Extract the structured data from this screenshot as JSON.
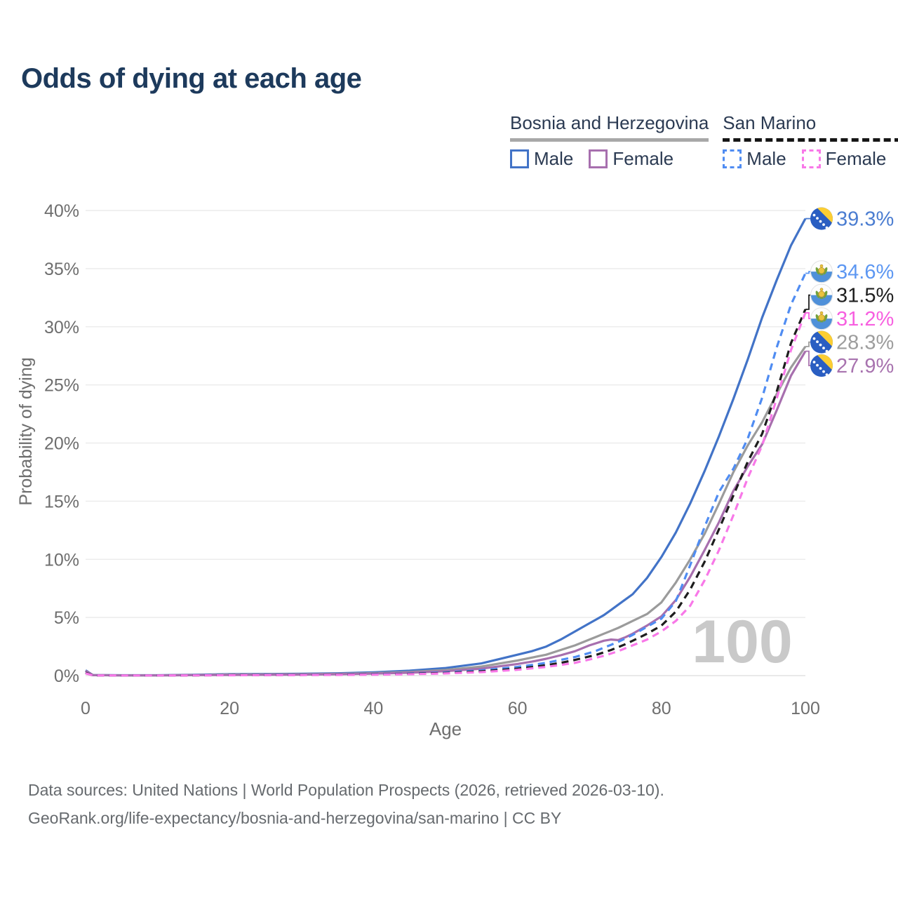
{
  "title": "Odds of dying at each age",
  "legend": {
    "groups": [
      {
        "country": "Bosnia and Herzegovina",
        "line_style": "solid",
        "line_color": "#a8a8a8",
        "items": [
          {
            "label": "Male",
            "color": "#4273c7",
            "style": "solid"
          },
          {
            "label": "Female",
            "color": "#a76fae",
            "style": "solid"
          }
        ]
      },
      {
        "country": "San Marino",
        "line_style": "dashed",
        "line_color": "#161616",
        "items": [
          {
            "label": "Male",
            "color": "#4f8cf2",
            "style": "dashed"
          },
          {
            "label": "Female",
            "color": "#f878e8",
            "style": "dashed"
          }
        ]
      }
    ]
  },
  "chart_data": {
    "type": "line",
    "title": "Odds of dying at each age",
    "xlabel": "Age",
    "ylabel": "Probability of dying",
    "xlim": [
      0,
      100
    ],
    "ylim": [
      0,
      40
    ],
    "grid": "horizontal",
    "legend_position": "top-right",
    "watermark": "100",
    "x_ticks": [
      {
        "value": 0,
        "label": "0"
      },
      {
        "value": 20,
        "label": "20"
      },
      {
        "value": 40,
        "label": "40"
      },
      {
        "value": 60,
        "label": "60"
      },
      {
        "value": 80,
        "label": "80"
      },
      {
        "value": 100,
        "label": "100"
      }
    ],
    "y_ticks": [
      {
        "value": 0,
        "label": "0%"
      },
      {
        "value": 5,
        "label": "5%"
      },
      {
        "value": 10,
        "label": "10%"
      },
      {
        "value": 15,
        "label": "15%"
      },
      {
        "value": 20,
        "label": "20%"
      },
      {
        "value": 25,
        "label": "25%"
      },
      {
        "value": 30,
        "label": "30%"
      },
      {
        "value": 35,
        "label": "35%"
      },
      {
        "value": 40,
        "label": "40%"
      }
    ],
    "ages": [
      0,
      1,
      5,
      10,
      15,
      20,
      25,
      30,
      35,
      40,
      45,
      50,
      55,
      60,
      62,
      64,
      66,
      68,
      70,
      71,
      72,
      73,
      74,
      75,
      76,
      78,
      80,
      82,
      84,
      86,
      88,
      90,
      92,
      94,
      96,
      98,
      100
    ],
    "unit": "%",
    "series": [
      {
        "id": "bih-male",
        "name": "Bosnia and Herzegovina — Male",
        "country": "Bosnia and Herzegovina",
        "sex": "Male",
        "color": "#4273c7",
        "label_color": "#4b7dd1",
        "dashed": false,
        "end_value": 39.3,
        "end_label": "39.3%",
        "flag": "bosnia-and-herzegovina-flag-icon",
        "values": [
          0.45,
          0.05,
          0.03,
          0.03,
          0.07,
          0.12,
          0.14,
          0.16,
          0.2,
          0.28,
          0.42,
          0.65,
          1.05,
          1.8,
          2.1,
          2.5,
          3.1,
          3.8,
          4.5,
          4.85,
          5.2,
          5.65,
          6.1,
          6.55,
          7.0,
          8.4,
          10.2,
          12.3,
          14.8,
          17.6,
          20.6,
          23.8,
          27.2,
          30.8,
          34.0,
          37.0,
          39.3
        ]
      },
      {
        "id": "bih-total",
        "name": "Bosnia and Herzegovina — Both sexes",
        "country": "Bosnia and Herzegovina",
        "sex": "Both",
        "color": "#9b9b9b",
        "label_color": "#9d9d9d",
        "dashed": false,
        "end_value": 28.3,
        "end_label": "28.3%",
        "flag": "bosnia-and-herzegovina-flag-icon",
        "values": [
          0.4,
          0.04,
          0.02,
          0.02,
          0.05,
          0.09,
          0.1,
          0.12,
          0.15,
          0.21,
          0.31,
          0.48,
          0.78,
          1.3,
          1.55,
          1.8,
          2.2,
          2.6,
          3.1,
          3.35,
          3.6,
          3.85,
          4.1,
          4.4,
          4.7,
          5.3,
          6.3,
          8.0,
          10.0,
          12.2,
          14.8,
          17.5,
          19.8,
          21.8,
          24.2,
          26.5,
          28.3
        ]
      },
      {
        "id": "bih-female",
        "name": "Bosnia and Herzegovina — Female",
        "country": "Bosnia and Herzegovina",
        "sex": "Female",
        "color": "#a76fae",
        "label_color": "#a873af",
        "dashed": false,
        "end_value": 27.9,
        "end_label": "27.9%",
        "flag": "bosnia-and-herzegovina-flag-icon",
        "values": [
          0.4,
          0.04,
          0.02,
          0.02,
          0.04,
          0.06,
          0.07,
          0.09,
          0.12,
          0.17,
          0.25,
          0.38,
          0.6,
          1.0,
          1.2,
          1.45,
          1.75,
          2.1,
          2.6,
          2.8,
          3.0,
          3.1,
          3.05,
          3.3,
          3.6,
          4.3,
          5.1,
          6.5,
          8.5,
          10.8,
          13.2,
          15.9,
          18.0,
          19.9,
          22.8,
          25.8,
          27.9
        ]
      },
      {
        "id": "sm-male",
        "name": "San Marino — Male",
        "country": "San Marino",
        "sex": "Male",
        "color": "#4f8cf2",
        "label_color": "#5d97f2",
        "dashed": true,
        "end_value": 34.6,
        "end_label": "34.6%",
        "flag": "san-marino-flag-icon",
        "values": [
          0.25,
          0.02,
          0.01,
          0.01,
          0.03,
          0.05,
          0.06,
          0.07,
          0.09,
          0.12,
          0.18,
          0.28,
          0.45,
          0.75,
          0.92,
          1.1,
          1.35,
          1.6,
          1.95,
          2.15,
          2.4,
          2.65,
          2.9,
          3.2,
          3.5,
          4.2,
          4.9,
          6.4,
          9.5,
          12.8,
          15.8,
          17.8,
          20.4,
          23.9,
          28.2,
          31.9,
          34.6
        ]
      },
      {
        "id": "sm-total",
        "name": "San Marino — Both sexes",
        "country": "San Marino",
        "sex": "Both",
        "color": "#1d1d1d",
        "label_color": "#1f1f1f",
        "dashed": true,
        "end_value": 31.5,
        "end_label": "31.5%",
        "flag": "san-marino-flag-icon",
        "values": [
          0.25,
          0.02,
          0.01,
          0.01,
          0.02,
          0.04,
          0.05,
          0.06,
          0.08,
          0.1,
          0.15,
          0.23,
          0.37,
          0.6,
          0.73,
          0.9,
          1.1,
          1.35,
          1.65,
          1.8,
          2.0,
          2.2,
          2.45,
          2.7,
          3.0,
          3.6,
          4.3,
          5.5,
          7.4,
          9.8,
          12.6,
          15.5,
          18.4,
          20.8,
          24.4,
          28.6,
          31.5
        ]
      },
      {
        "id": "sm-female",
        "name": "San Marino — Female",
        "country": "San Marino",
        "sex": "Female",
        "color": "#f878e8",
        "label_color": "#f75fe0",
        "dashed": true,
        "end_value": 31.2,
        "end_label": "31.2%",
        "flag": "san-marino-flag-icon",
        "values": [
          0.2,
          0.02,
          0.01,
          0.01,
          0.02,
          0.03,
          0.04,
          0.05,
          0.06,
          0.08,
          0.12,
          0.19,
          0.3,
          0.5,
          0.62,
          0.75,
          0.92,
          1.1,
          1.38,
          1.55,
          1.7,
          1.9,
          2.1,
          2.35,
          2.6,
          3.1,
          3.8,
          4.7,
          6.0,
          8.2,
          10.8,
          13.8,
          17.0,
          19.8,
          23.8,
          28.0,
          31.2
        ]
      }
    ]
  },
  "footer": {
    "line1": "Data sources: United Nations | World Population Prospects (2026, retrieved 2026-03-10).",
    "line2": "GeoRank.org/life-expectancy/bosnia-and-herzegovina/san-marino | CC BY"
  }
}
